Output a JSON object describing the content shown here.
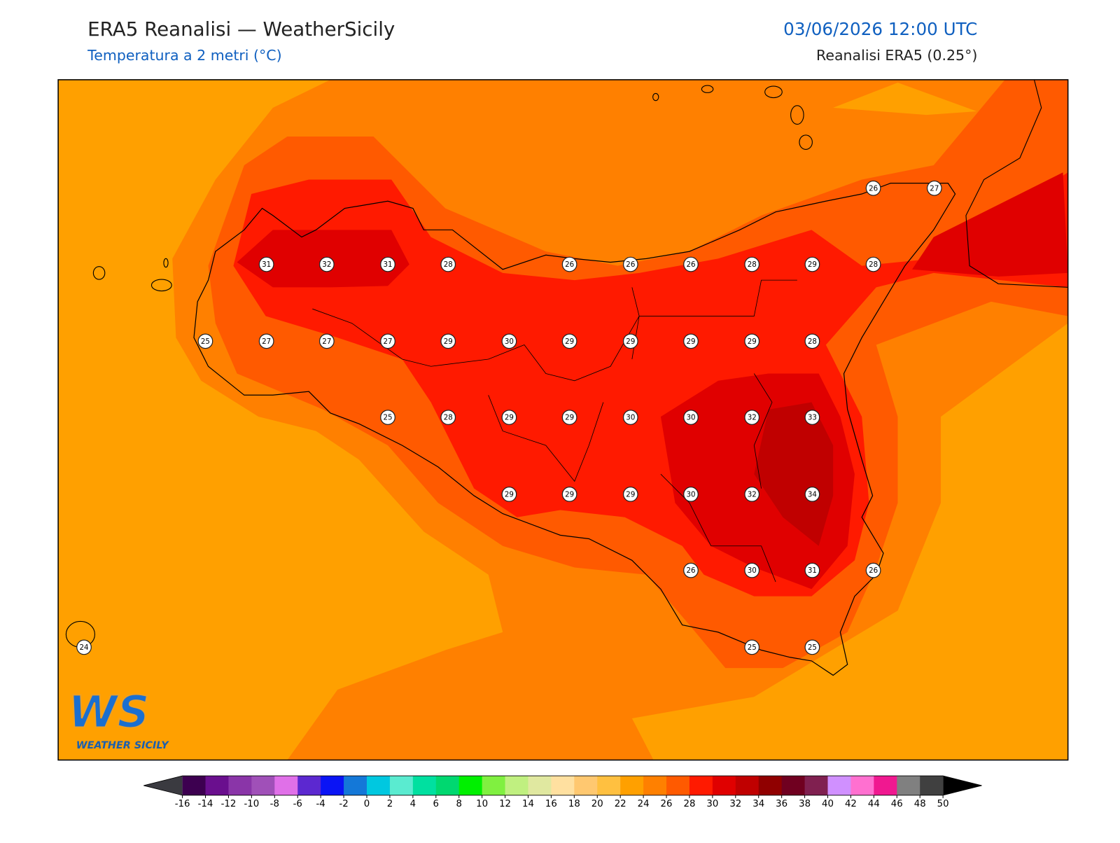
{
  "header": {
    "title": "ERA5 Reanalisi — WeatherSicily",
    "subtitle": "Temperatura a 2 metri (°C)",
    "datetime": "03/06/2026 12:00 UTC",
    "source": "Reanalisi ERA5 (0.25°)"
  },
  "map": {
    "points": [
      26,
      27,
      31,
      32,
      31,
      28,
      26,
      26,
      26,
      28,
      29,
      28,
      25,
      27,
      27,
      27,
      29,
      30,
      29,
      29,
      29,
      29,
      28,
      25,
      28,
      29,
      29,
      30,
      30,
      32,
      33,
      29,
      29,
      29,
      30,
      32,
      34,
      26,
      30,
      31,
      26,
      24,
      25,
      25
    ]
  },
  "colorbar": {
    "ticks": [
      -16,
      -14,
      -12,
      -10,
      -8,
      -6,
      -4,
      -2,
      0,
      2,
      4,
      6,
      8,
      10,
      12,
      14,
      16,
      18,
      20,
      22,
      24,
      26,
      28,
      30,
      32,
      34,
      36,
      38,
      40,
      42,
      44,
      46,
      48,
      50
    ],
    "colors": [
      "#3d0050",
      "#6a0f8e",
      "#8a35a8",
      "#a050b8",
      "#e070e8",
      "#5c28d0",
      "#0a14f5",
      "#1478d8",
      "#00c8e0",
      "#5aebd0",
      "#00e0a0",
      "#00d870",
      "#00f000",
      "#80f040",
      "#c0f080",
      "#e0e8a0",
      "#ffe0a0",
      "#ffc870",
      "#ffc040",
      "#ffa000",
      "#ff8000",
      "#ff5a00",
      "#ff1a00",
      "#e00000",
      "#c00000",
      "#900000",
      "#700020",
      "#802050",
      "#d090ff",
      "#ff70d0",
      "#f01890",
      "#808080",
      "#404040"
    ],
    "under_color": "#3a3a40",
    "over_color": "#000000"
  },
  "logo": {
    "mark": "WS",
    "text": "WEATHER SICILY"
  }
}
